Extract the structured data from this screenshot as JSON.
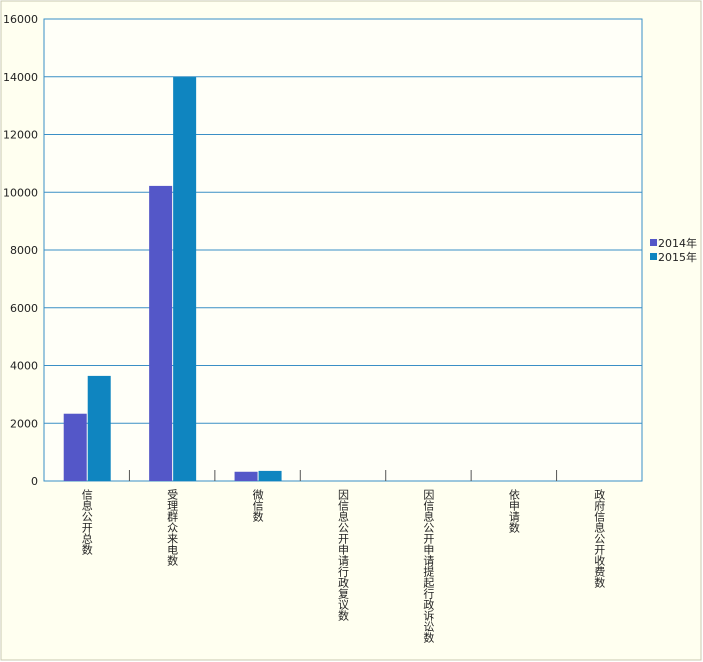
{
  "chart_data": {
    "type": "bar",
    "categories": [
      "信息公开总数",
      "受理群众来电数",
      "微信数",
      "因信息公开申请行政复议数",
      "因信息公开申请提起行政诉讼数",
      "依申请数",
      "政府信息公开收费数"
    ],
    "series": [
      {
        "name": "2014年",
        "color": "#5457c8",
        "values": [
          2330,
          10220,
          320,
          0,
          0,
          0,
          0
        ]
      },
      {
        "name": "2015年",
        "color": "#0f85c0",
        "values": [
          3640,
          13990,
          350,
          0,
          0,
          0,
          0
        ]
      }
    ],
    "ylim": [
      0,
      16000
    ],
    "yticks": [
      0,
      2000,
      4000,
      6000,
      8000,
      10000,
      12000,
      14000,
      16000
    ],
    "grid": true,
    "legend": "right"
  }
}
